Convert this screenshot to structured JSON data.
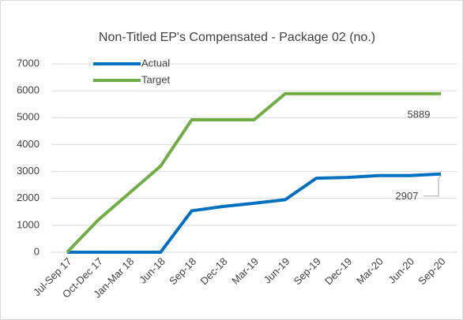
{
  "chart_data": {
    "type": "line",
    "title": "Non-Titled EP's Compensated - Package 02 (no.)",
    "categories": [
      "Jul-Sep 17",
      "Oct-Dec 17",
      "Jan-Mar 18",
      "Jun-18",
      "Sep-18",
      "Dec-18",
      "Mar-19",
      "Jun-19",
      "Sep-19",
      "Dec-19",
      "Mar-20",
      "Jun-20",
      "Sep-20"
    ],
    "series": [
      {
        "name": "Actual",
        "color": "#0070c0",
        "values": [
          0,
          0,
          0,
          0,
          1540,
          1700,
          1820,
          1950,
          2750,
          2780,
          2850,
          2850,
          2907
        ]
      },
      {
        "name": "Target",
        "color": "#70ad47",
        "values": [
          0,
          1200,
          2200,
          3200,
          4920,
          4920,
          4920,
          5889,
          5889,
          5889,
          5889,
          5889,
          5889
        ]
      }
    ],
    "ylim": [
      0,
      7000
    ],
    "yticks": [
      0,
      1000,
      2000,
      3000,
      4000,
      5000,
      6000,
      7000
    ],
    "grid": true,
    "legend": "top-left"
  }
}
